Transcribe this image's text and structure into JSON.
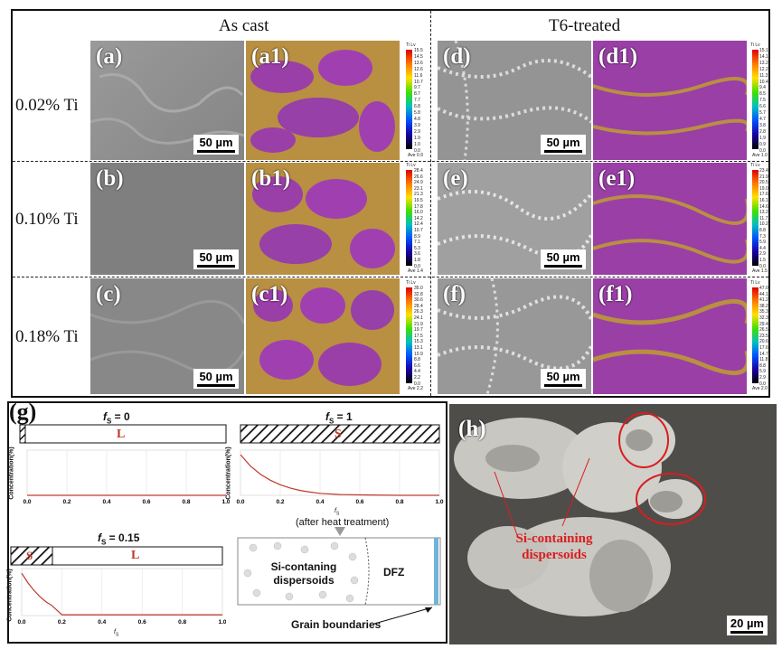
{
  "top": {
    "headers": {
      "as_cast": "As cast",
      "t6": "T6-treated"
    },
    "rows": [
      {
        "label": "0.02% Ti",
        "tiles": [
          {
            "label": "(a)",
            "scale": "50 µm"
          },
          {
            "label": "(a1)",
            "colorbar": {
              "title": "Ti Lv",
              "ticks": [
                "15.5",
                "14.5",
                "13.6",
                "12.6",
                "11.6",
                "10.7",
                "9.7",
                "8.7",
                "7.7",
                "6.8",
                "5.8",
                "4.8",
                "3.9",
                "2.9",
                "1.9",
                "1.0",
                "0.0"
              ],
              "ave": "Ave 0.9"
            }
          },
          {
            "label": "(d)",
            "scale": "50 µm"
          },
          {
            "label": "(d1)",
            "colorbar": {
              "title": "Ti Lv",
              "ticks": [
                "15.1",
                "14.1",
                "13.2",
                "12.2",
                "11.3",
                "10.4",
                "9.4",
                "8.5",
                "7.5",
                "6.6",
                "5.7",
                "4.7",
                "3.8",
                "2.8",
                "1.9",
                "0.9",
                "0.0"
              ],
              "ave": "Ave 1.0"
            }
          }
        ]
      },
      {
        "label": "0.10% Ti",
        "tiles": [
          {
            "label": "(b)",
            "scale": "50 µm"
          },
          {
            "label": "(b1)",
            "colorbar": {
              "title": "Ti Lv",
              "ticks": [
                "28.4",
                "26.6",
                "24.9",
                "23.1",
                "21.3",
                "19.5",
                "17.8",
                "16.0",
                "14.2",
                "12.4",
                "10.7",
                "8.9",
                "7.1",
                "5.3",
                "3.6",
                "1.8",
                "0.0"
              ],
              "ave": "Ave 1.4"
            }
          },
          {
            "label": "(e)",
            "scale": "50 µm"
          },
          {
            "label": "(e1)",
            "colorbar": {
              "title": "Ti Lv",
              "ticks": [
                "23.4",
                "21.9",
                "20.5",
                "19.0",
                "17.6",
                "16.1",
                "14.6",
                "13.2",
                "11.7",
                "10.2",
                "8.8",
                "7.3",
                "5.9",
                "4.4",
                "2.9",
                "1.5",
                "0.0"
              ],
              "ave": "Ave 1.5"
            }
          }
        ]
      },
      {
        "label": "0.18% Ti",
        "tiles": [
          {
            "label": "(c)",
            "scale": "50 µm"
          },
          {
            "label": "(c1)",
            "colorbar": {
              "title": "Ti Lv",
              "ticks": [
                "35.0",
                "32.8",
                "30.6",
                "28.4",
                "26.3",
                "24.1",
                "21.9",
                "19.7",
                "17.5",
                "15.3",
                "13.1",
                "10.9",
                "8.8",
                "6.6",
                "4.4",
                "2.2",
                "0.0"
              ],
              "ave": "Ave 2.2"
            }
          },
          {
            "label": "(f)",
            "scale": "50 µm"
          },
          {
            "label": "(f1)",
            "colorbar": {
              "title": "Ti Lv",
              "ticks": [
                "47.0",
                "44.1",
                "41.2",
                "38.2",
                "35.3",
                "32.3",
                "29.4",
                "26.5",
                "23.5",
                "20.6",
                "17.6",
                "14.7",
                "11.8",
                "8.8",
                "5.9",
                "2.9",
                "0.0"
              ],
              "ave": "Ave 2.0"
            }
          }
        ]
      }
    ]
  },
  "panel_g": {
    "label": "(g)",
    "fs0": {
      "title_f": "f",
      "title_sub": "S",
      "title_val": " = 0",
      "bar_letter": "L"
    },
    "fs1": {
      "title_f": "f",
      "title_sub": "S",
      "title_val": " = 1",
      "bar_letter": "S"
    },
    "fs015": {
      "title_f": "f",
      "title_sub": "S",
      "title_val": " = 0.15",
      "bar_letter_left": "S",
      "bar_letter": "L"
    },
    "ylabel": "Concentration(%)",
    "xlabel": "f",
    "xlabel_sub": "S",
    "xticks": [
      "0.0",
      "0.2",
      "0.4",
      "0.6",
      "0.8",
      "1.0"
    ],
    "after_note": "(after heat treatment)",
    "dispersoids": "Si-contaning dispersoids",
    "dfz": "DFZ",
    "grain_boundaries": "Grain boundaries"
  },
  "panel_h": {
    "label": "(h)",
    "annotation": "Si-containing dispersoids",
    "scale": "20 µm"
  },
  "chart_data": [
    {
      "type": "line",
      "title": "fS = 0",
      "xlabel": "fS",
      "ylabel": "Concentration(%)",
      "xlim": [
        0,
        1
      ],
      "series": [
        {
          "x": [
            0,
            1
          ],
          "y": [
            0,
            0
          ]
        }
      ]
    },
    {
      "type": "line",
      "title": "fS = 1",
      "xlabel": "fS",
      "ylabel": "Concentration(%)",
      "xlim": [
        0,
        1
      ],
      "series": [
        {
          "x": [
            0,
            0.05,
            0.1,
            0.15,
            0.2,
            0.25,
            0.3,
            0.35,
            0.4,
            0.5,
            0.6,
            0.8,
            1.0
          ],
          "y": [
            1.0,
            0.72,
            0.52,
            0.37,
            0.26,
            0.18,
            0.12,
            0.08,
            0.05,
            0.02,
            0.01,
            0.0,
            0.0
          ]
        }
      ]
    },
    {
      "type": "line",
      "title": "fS = 0.15",
      "xlabel": "fS",
      "ylabel": "Concentration(%)",
      "xlim": [
        0,
        1
      ],
      "series": [
        {
          "x": [
            0,
            0.03,
            0.06,
            0.09,
            0.12,
            0.15,
            0.2,
            1.0
          ],
          "y": [
            1.0,
            0.78,
            0.6,
            0.45,
            0.33,
            0.24,
            0.02,
            0.02
          ]
        }
      ]
    }
  ]
}
